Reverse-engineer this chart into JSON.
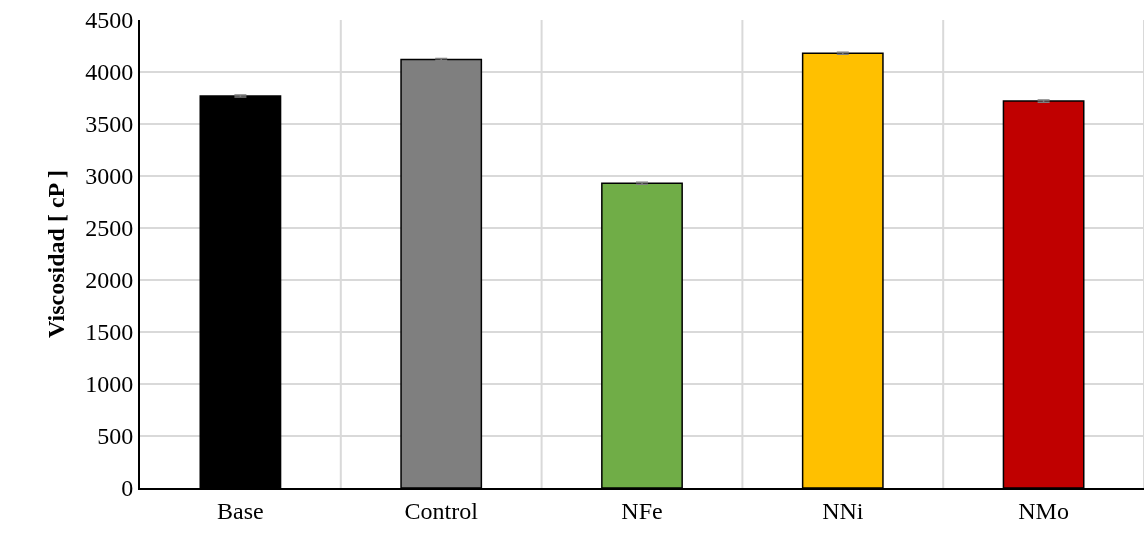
{
  "chart_data": {
    "type": "bar",
    "ylabel": "Viscosidad [ cP ]",
    "categories": [
      "Base",
      "Control",
      "NFe",
      "NNi",
      "NMo"
    ],
    "values": [
      3770,
      4120,
      2930,
      4180,
      3720
    ],
    "colors": [
      "#000000",
      "#7f7f7f",
      "#70ad47",
      "#ffc000",
      "#c00000"
    ],
    "errors": [
      10,
      10,
      10,
      10,
      10
    ],
    "ylim": [
      0,
      4500
    ],
    "yticks": [
      0,
      500,
      1000,
      1500,
      2000,
      2500,
      3000,
      3500,
      4000,
      4500
    ],
    "grid": true
  }
}
